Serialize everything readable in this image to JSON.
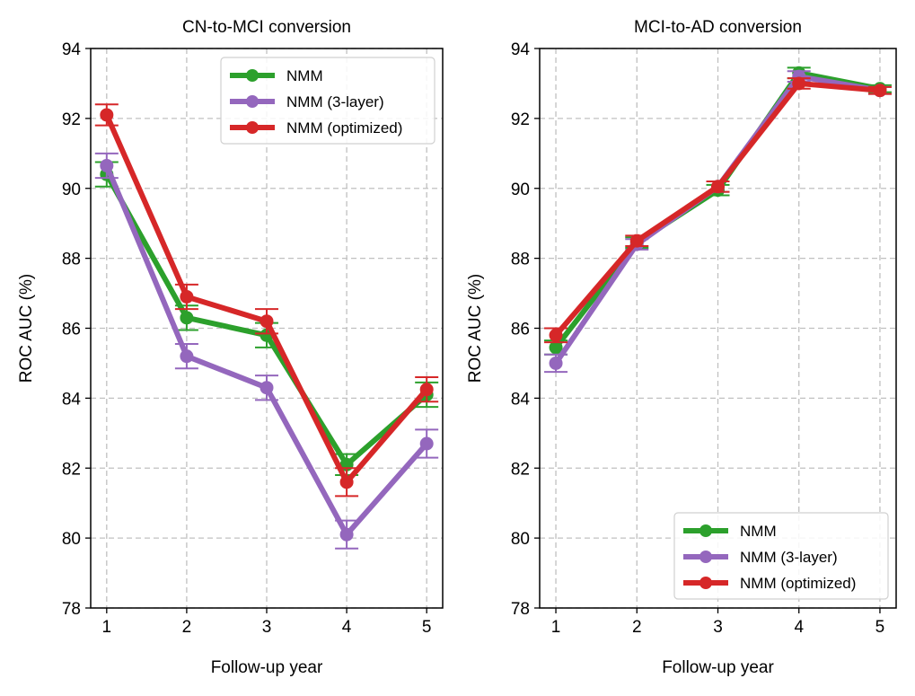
{
  "chart_data": [
    {
      "type": "line",
      "title": "CN-to-MCI conversion",
      "xlabel": "Follow-up year",
      "ylabel": "ROC AUC (%)",
      "x": [
        1,
        2,
        3,
        4,
        5
      ],
      "xticks": [
        "1",
        "2",
        "3",
        "4",
        "5"
      ],
      "yticks": [
        "78",
        "80",
        "82",
        "84",
        "86",
        "88",
        "90",
        "92",
        "94"
      ],
      "ylim": [
        78,
        94
      ],
      "grid": true,
      "legend_position": "upper-right",
      "series": [
        {
          "name": "NMM",
          "color": "#2ca02c",
          "values": [
            90.4,
            86.3,
            85.8,
            82.1,
            84.1
          ],
          "errors": [
            0.35,
            0.35,
            0.35,
            0.3,
            0.35
          ]
        },
        {
          "name": "NMM (3-layer)",
          "color": "#9467bd",
          "values": [
            90.65,
            85.2,
            84.3,
            80.1,
            82.7
          ],
          "errors": [
            0.35,
            0.35,
            0.35,
            0.4,
            0.4
          ]
        },
        {
          "name": "NMM (optimized)",
          "color": "#d62728",
          "values": [
            92.1,
            86.9,
            86.2,
            81.6,
            84.25
          ],
          "errors": [
            0.3,
            0.35,
            0.35,
            0.4,
            0.35
          ]
        }
      ]
    },
    {
      "type": "line",
      "title": "MCI-to-AD conversion",
      "xlabel": "Follow-up year",
      "ylabel": "ROC AUC (%)",
      "x": [
        1,
        2,
        3,
        4,
        5
      ],
      "xticks": [
        "1",
        "2",
        "3",
        "4",
        "5"
      ],
      "yticks": [
        "78",
        "80",
        "82",
        "84",
        "86",
        "88",
        "90",
        "92",
        "94"
      ],
      "ylim": [
        78,
        94
      ],
      "grid": true,
      "legend_position": "lower-right",
      "series": [
        {
          "name": "NMM",
          "color": "#2ca02c",
          "values": [
            85.45,
            88.45,
            89.95,
            93.3,
            92.85
          ],
          "errors": [
            0.2,
            0.15,
            0.15,
            0.15,
            0.1
          ]
        },
        {
          "name": "NMM (3-layer)",
          "color": "#9467bd",
          "values": [
            85.0,
            88.4,
            90.05,
            93.2,
            92.8
          ],
          "errors": [
            0.25,
            0.15,
            0.15,
            0.15,
            0.1
          ]
        },
        {
          "name": "NMM (optimized)",
          "color": "#d62728",
          "values": [
            85.8,
            88.5,
            90.05,
            93.0,
            92.8
          ],
          "errors": [
            0.2,
            0.15,
            0.15,
            0.15,
            0.1
          ]
        }
      ]
    }
  ]
}
